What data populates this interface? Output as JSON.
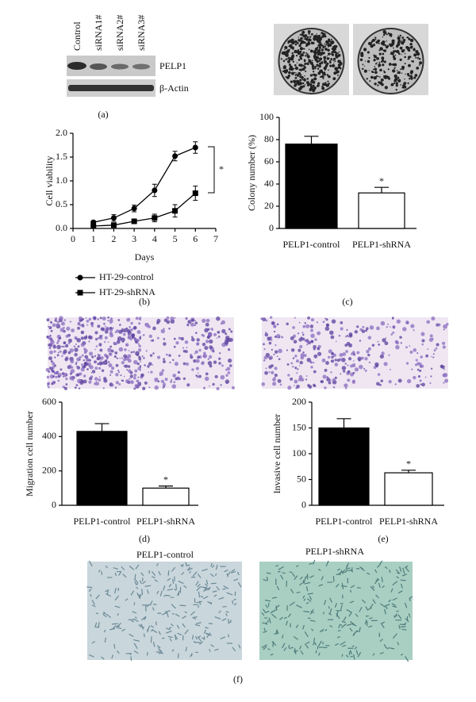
{
  "blot": {
    "lanes": [
      "Control",
      "siRNA1#",
      "siRNA2#",
      "siRNA3#"
    ],
    "bands": [
      "PELP1",
      "β-Actin"
    ]
  },
  "panel_labels": [
    "(a)",
    "(b)",
    "(c)",
    "(d)",
    "(e)",
    "(f)"
  ],
  "image_titles": [
    "PELP1-control",
    "PELP1-shRNA"
  ],
  "chart_data": [
    {
      "type": "line",
      "x_label": "Days",
      "y_label": "Cell viability",
      "x": [
        1,
        2,
        3,
        4,
        5,
        6
      ],
      "xlim": [
        0,
        7
      ],
      "xticks": [
        0,
        1,
        2,
        3,
        4,
        5,
        6,
        7
      ],
      "ylim": [
        0,
        2
      ],
      "yticks": [
        {
          "value": 0,
          "label": "0.0"
        },
        0.5,
        {
          "value": 1,
          "label": "1.0"
        },
        1.5,
        {
          "value": 2,
          "label": "2.0"
        }
      ],
      "annotation": "*",
      "series": [
        {
          "name": "HT-29-control",
          "color": "#000000",
          "marker": "circle",
          "values": [
            0.13,
            0.22,
            0.42,
            0.8,
            1.52,
            1.7
          ],
          "errors": [
            0.03,
            0.07,
            0.07,
            0.13,
            0.1,
            0.12
          ]
        },
        {
          "name": "HT-29-shRNA",
          "color": "#000000",
          "marker": "square",
          "values": [
            0.05,
            0.07,
            0.15,
            0.22,
            0.37,
            0.74
          ],
          "errors": [
            0.02,
            0.03,
            0.05,
            0.08,
            0.13,
            0.15
          ]
        }
      ]
    },
    {
      "type": "bar",
      "y_label": "Colony number (%)",
      "categories": [
        "PELP1-control",
        "PELP1-shRNA"
      ],
      "values": [
        76,
        32
      ],
      "errors": [
        7,
        5
      ],
      "colors": [
        "#000000",
        "#ffffff"
      ],
      "ylim": [
        0,
        100
      ],
      "yticks": [
        0,
        20,
        40,
        60,
        80,
        100
      ],
      "annotation": "*"
    },
    {
      "type": "bar",
      "y_label": "Migration cell number",
      "categories": [
        "PELP1-control",
        "PELP1-shRNA"
      ],
      "values": [
        430,
        100
      ],
      "errors": [
        45,
        12
      ],
      "colors": [
        "#000000",
        "#ffffff"
      ],
      "ylim": [
        0,
        600
      ],
      "yticks": [
        0,
        200,
        400,
        600
      ],
      "annotation": "*"
    },
    {
      "type": "bar",
      "y_label": "Invasive cell number",
      "categories": [
        "PELP1-control",
        "PELP1-shRNA"
      ],
      "values": [
        150,
        63
      ],
      "errors": [
        18,
        5
      ],
      "colors": [
        "#000000",
        "#ffffff"
      ],
      "ylim": [
        0,
        200
      ],
      "yticks": [
        0,
        50,
        100,
        150,
        200
      ],
      "annotation": "*"
    }
  ]
}
